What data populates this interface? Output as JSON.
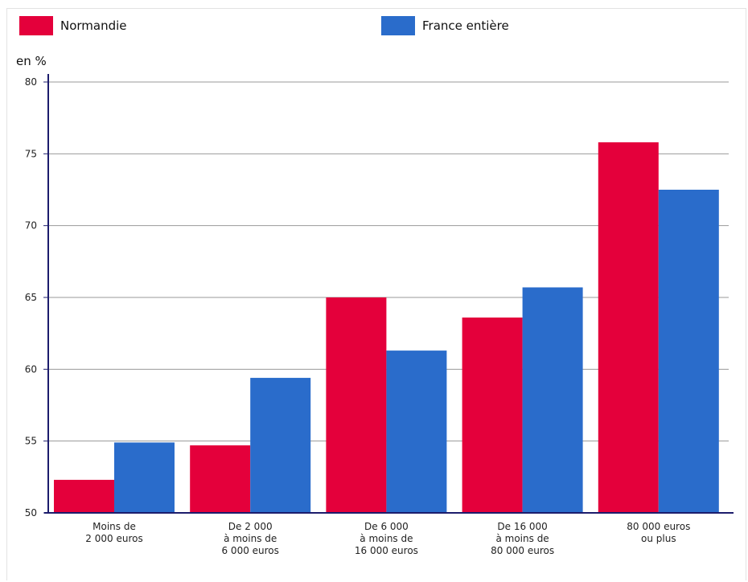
{
  "chart_data": {
    "type": "bar",
    "ylabel": "en %",
    "ylim": [
      50,
      80
    ],
    "yticks": [
      50,
      55,
      60,
      65,
      70,
      75,
      80
    ],
    "grid": true,
    "legend_position": "top",
    "categories": [
      [
        "Moins de",
        "2 000 euros"
      ],
      [
        "De 2 000",
        "à moins de",
        "6 000 euros"
      ],
      [
        "De 6 000",
        "à moins de",
        "16 000 euros"
      ],
      [
        "De 16 000",
        "à moins de",
        "80 000 euros"
      ],
      [
        "80 000 euros",
        "ou plus"
      ]
    ],
    "series": [
      {
        "name": "Normandie",
        "color": "#e4003b",
        "values": [
          52.3,
          54.7,
          65.0,
          63.6,
          75.8
        ]
      },
      {
        "name": "France entière",
        "color": "#2a6ccb",
        "values": [
          54.9,
          59.4,
          61.3,
          65.7,
          72.5
        ]
      }
    ]
  }
}
